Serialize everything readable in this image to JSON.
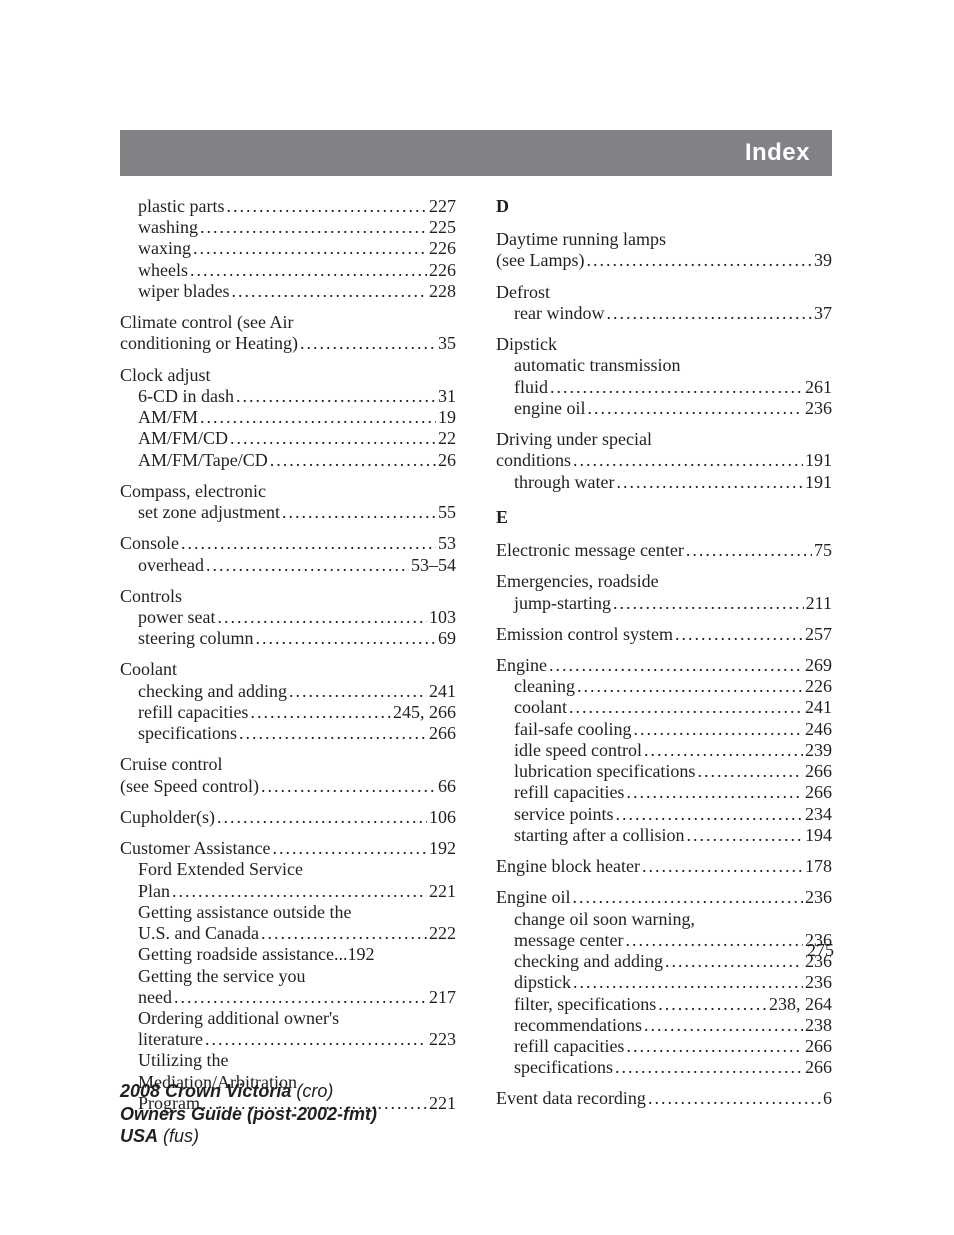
{
  "header": {
    "title": "Index"
  },
  "page_number": "275",
  "footer": {
    "line1_bold": "2008 Crown Victoria",
    "line1_ital": "(cro)",
    "line2_bold": "Owners Guide (post-2002-fmt)",
    "line3_bold": "USA",
    "line3_ital": "(fus)"
  },
  "sections": {
    "D": "D",
    "E": "E"
  },
  "left": [
    {
      "type": "block",
      "lines": [
        {
          "sub": true,
          "label": "plastic parts",
          "page": "227"
        },
        {
          "sub": true,
          "label": "washing",
          "page": "225"
        },
        {
          "sub": true,
          "label": "waxing",
          "page": "226"
        },
        {
          "sub": true,
          "label": "wheels",
          "page": "226"
        },
        {
          "sub": true,
          "label": "wiper blades",
          "page": "228"
        }
      ]
    },
    {
      "type": "block",
      "lines": [
        {
          "sub": false,
          "label": "Climate control (see Air",
          "noleader": true
        },
        {
          "sub": false,
          "label": "conditioning or Heating)",
          "page": "35"
        }
      ]
    },
    {
      "type": "block",
      "lines": [
        {
          "sub": false,
          "label": "Clock adjust",
          "noleader": true
        },
        {
          "sub": true,
          "label": "6-CD in dash",
          "page": "31"
        },
        {
          "sub": true,
          "label": "AM/FM",
          "page": "19"
        },
        {
          "sub": true,
          "label": "AM/FM/CD",
          "page": "22"
        },
        {
          "sub": true,
          "label": "AM/FM/Tape/CD",
          "page": "26"
        }
      ]
    },
    {
      "type": "block",
      "lines": [
        {
          "sub": false,
          "label": "Compass, electronic",
          "noleader": true
        },
        {
          "sub": true,
          "label": "set zone adjustment",
          "page": "55"
        }
      ]
    },
    {
      "type": "block",
      "lines": [
        {
          "sub": false,
          "label": "Console",
          "page": "53"
        },
        {
          "sub": true,
          "label": "overhead",
          "page": "53–54"
        }
      ]
    },
    {
      "type": "block",
      "lines": [
        {
          "sub": false,
          "label": "Controls",
          "noleader": true
        },
        {
          "sub": true,
          "label": "power seat",
          "page": "103"
        },
        {
          "sub": true,
          "label": "steering column",
          "page": "69"
        }
      ]
    },
    {
      "type": "block",
      "lines": [
        {
          "sub": false,
          "label": "Coolant",
          "noleader": true
        },
        {
          "sub": true,
          "label": "checking and adding",
          "page": "241"
        },
        {
          "sub": true,
          "label": "refill capacities",
          "page": "245, 266"
        },
        {
          "sub": true,
          "label": "specifications",
          "page": "266"
        }
      ]
    },
    {
      "type": "block",
      "lines": [
        {
          "sub": false,
          "label": "Cruise control",
          "noleader": true
        },
        {
          "sub": false,
          "label": "(see Speed control)",
          "page": "66"
        }
      ]
    },
    {
      "type": "block",
      "lines": [
        {
          "sub": false,
          "label": "Cupholder(s)",
          "page": "106"
        }
      ]
    },
    {
      "type": "block",
      "lines": [
        {
          "sub": false,
          "label": "Customer Assistance",
          "page": "192"
        },
        {
          "sub": true,
          "label": "Ford Extended Service",
          "noleader": true
        },
        {
          "sub": true,
          "label": "Plan",
          "page": "221"
        },
        {
          "sub": true,
          "label": "Getting assistance outside the",
          "noleader": true
        },
        {
          "sub": true,
          "label": "U.S. and Canada",
          "page": "222"
        },
        {
          "sub": true,
          "label": "Getting roadside assistance",
          "page": "192",
          "tight": true
        },
        {
          "sub": true,
          "label": "Getting the service you",
          "noleader": true
        },
        {
          "sub": true,
          "label": "need",
          "page": "217"
        },
        {
          "sub": true,
          "label": "Ordering additional owner's",
          "noleader": true
        },
        {
          "sub": true,
          "label": "literature",
          "page": "223"
        },
        {
          "sub": true,
          "label": "Utilizing the",
          "noleader": true
        },
        {
          "sub": true,
          "label": "Mediation/Arbitration",
          "noleader": true
        },
        {
          "sub": true,
          "label": "Program",
          "page": "221"
        }
      ]
    }
  ],
  "right_D": [
    {
      "type": "block",
      "lines": [
        {
          "sub": false,
          "label": "Daytime running lamps",
          "noleader": true
        },
        {
          "sub": false,
          "label": "(see Lamps)",
          "page": "39"
        }
      ]
    },
    {
      "type": "block",
      "lines": [
        {
          "sub": false,
          "label": "Defrost",
          "noleader": true
        },
        {
          "sub": true,
          "label": "rear window",
          "page": "37"
        }
      ]
    },
    {
      "type": "block",
      "lines": [
        {
          "sub": false,
          "label": "Dipstick",
          "noleader": true
        },
        {
          "sub": true,
          "label": "automatic transmission",
          "noleader": true
        },
        {
          "sub": true,
          "label": "fluid",
          "page": "261"
        },
        {
          "sub": true,
          "label": "engine oil",
          "page": "236"
        }
      ]
    },
    {
      "type": "block",
      "lines": [
        {
          "sub": false,
          "label": "Driving under special",
          "noleader": true
        },
        {
          "sub": false,
          "label": "conditions",
          "page": "191"
        },
        {
          "sub": true,
          "label": "through water",
          "page": "191"
        }
      ]
    }
  ],
  "right_E": [
    {
      "type": "block",
      "lines": [
        {
          "sub": false,
          "label": "Electronic message center",
          "page": "75"
        }
      ]
    },
    {
      "type": "block",
      "lines": [
        {
          "sub": false,
          "label": "Emergencies, roadside",
          "noleader": true
        },
        {
          "sub": true,
          "label": "jump-starting",
          "page": "211"
        }
      ]
    },
    {
      "type": "block",
      "lines": [
        {
          "sub": false,
          "label": "Emission control system",
          "page": "257"
        }
      ]
    },
    {
      "type": "block",
      "lines": [
        {
          "sub": false,
          "label": "Engine",
          "page": "269"
        },
        {
          "sub": true,
          "label": "cleaning",
          "page": "226"
        },
        {
          "sub": true,
          "label": "coolant",
          "page": "241"
        },
        {
          "sub": true,
          "label": "fail-safe cooling",
          "page": "246"
        },
        {
          "sub": true,
          "label": "idle speed control",
          "page": "239"
        },
        {
          "sub": true,
          "label": "lubrication specifications",
          "page": "266"
        },
        {
          "sub": true,
          "label": "refill capacities",
          "page": "266"
        },
        {
          "sub": true,
          "label": "service points",
          "page": "234"
        },
        {
          "sub": true,
          "label": "starting after a collision",
          "page": "194"
        }
      ]
    },
    {
      "type": "block",
      "lines": [
        {
          "sub": false,
          "label": "Engine block heater",
          "page": "178"
        }
      ]
    },
    {
      "type": "block",
      "lines": [
        {
          "sub": false,
          "label": "Engine oil",
          "page": "236"
        },
        {
          "sub": true,
          "label": "change oil soon warning,",
          "noleader": true
        },
        {
          "sub": true,
          "label": "message center",
          "page": "236"
        },
        {
          "sub": true,
          "label": "checking and adding",
          "page": "236"
        },
        {
          "sub": true,
          "label": "dipstick",
          "page": "236"
        },
        {
          "sub": true,
          "label": "filter, specifications",
          "page": "238, 264"
        },
        {
          "sub": true,
          "label": "recommendations",
          "page": "238"
        },
        {
          "sub": true,
          "label": "refill capacities",
          "page": "266"
        },
        {
          "sub": true,
          "label": "specifications",
          "page": "266"
        }
      ]
    },
    {
      "type": "block",
      "lines": [
        {
          "sub": false,
          "label": "Event data recording",
          "page": "6"
        }
      ]
    }
  ]
}
